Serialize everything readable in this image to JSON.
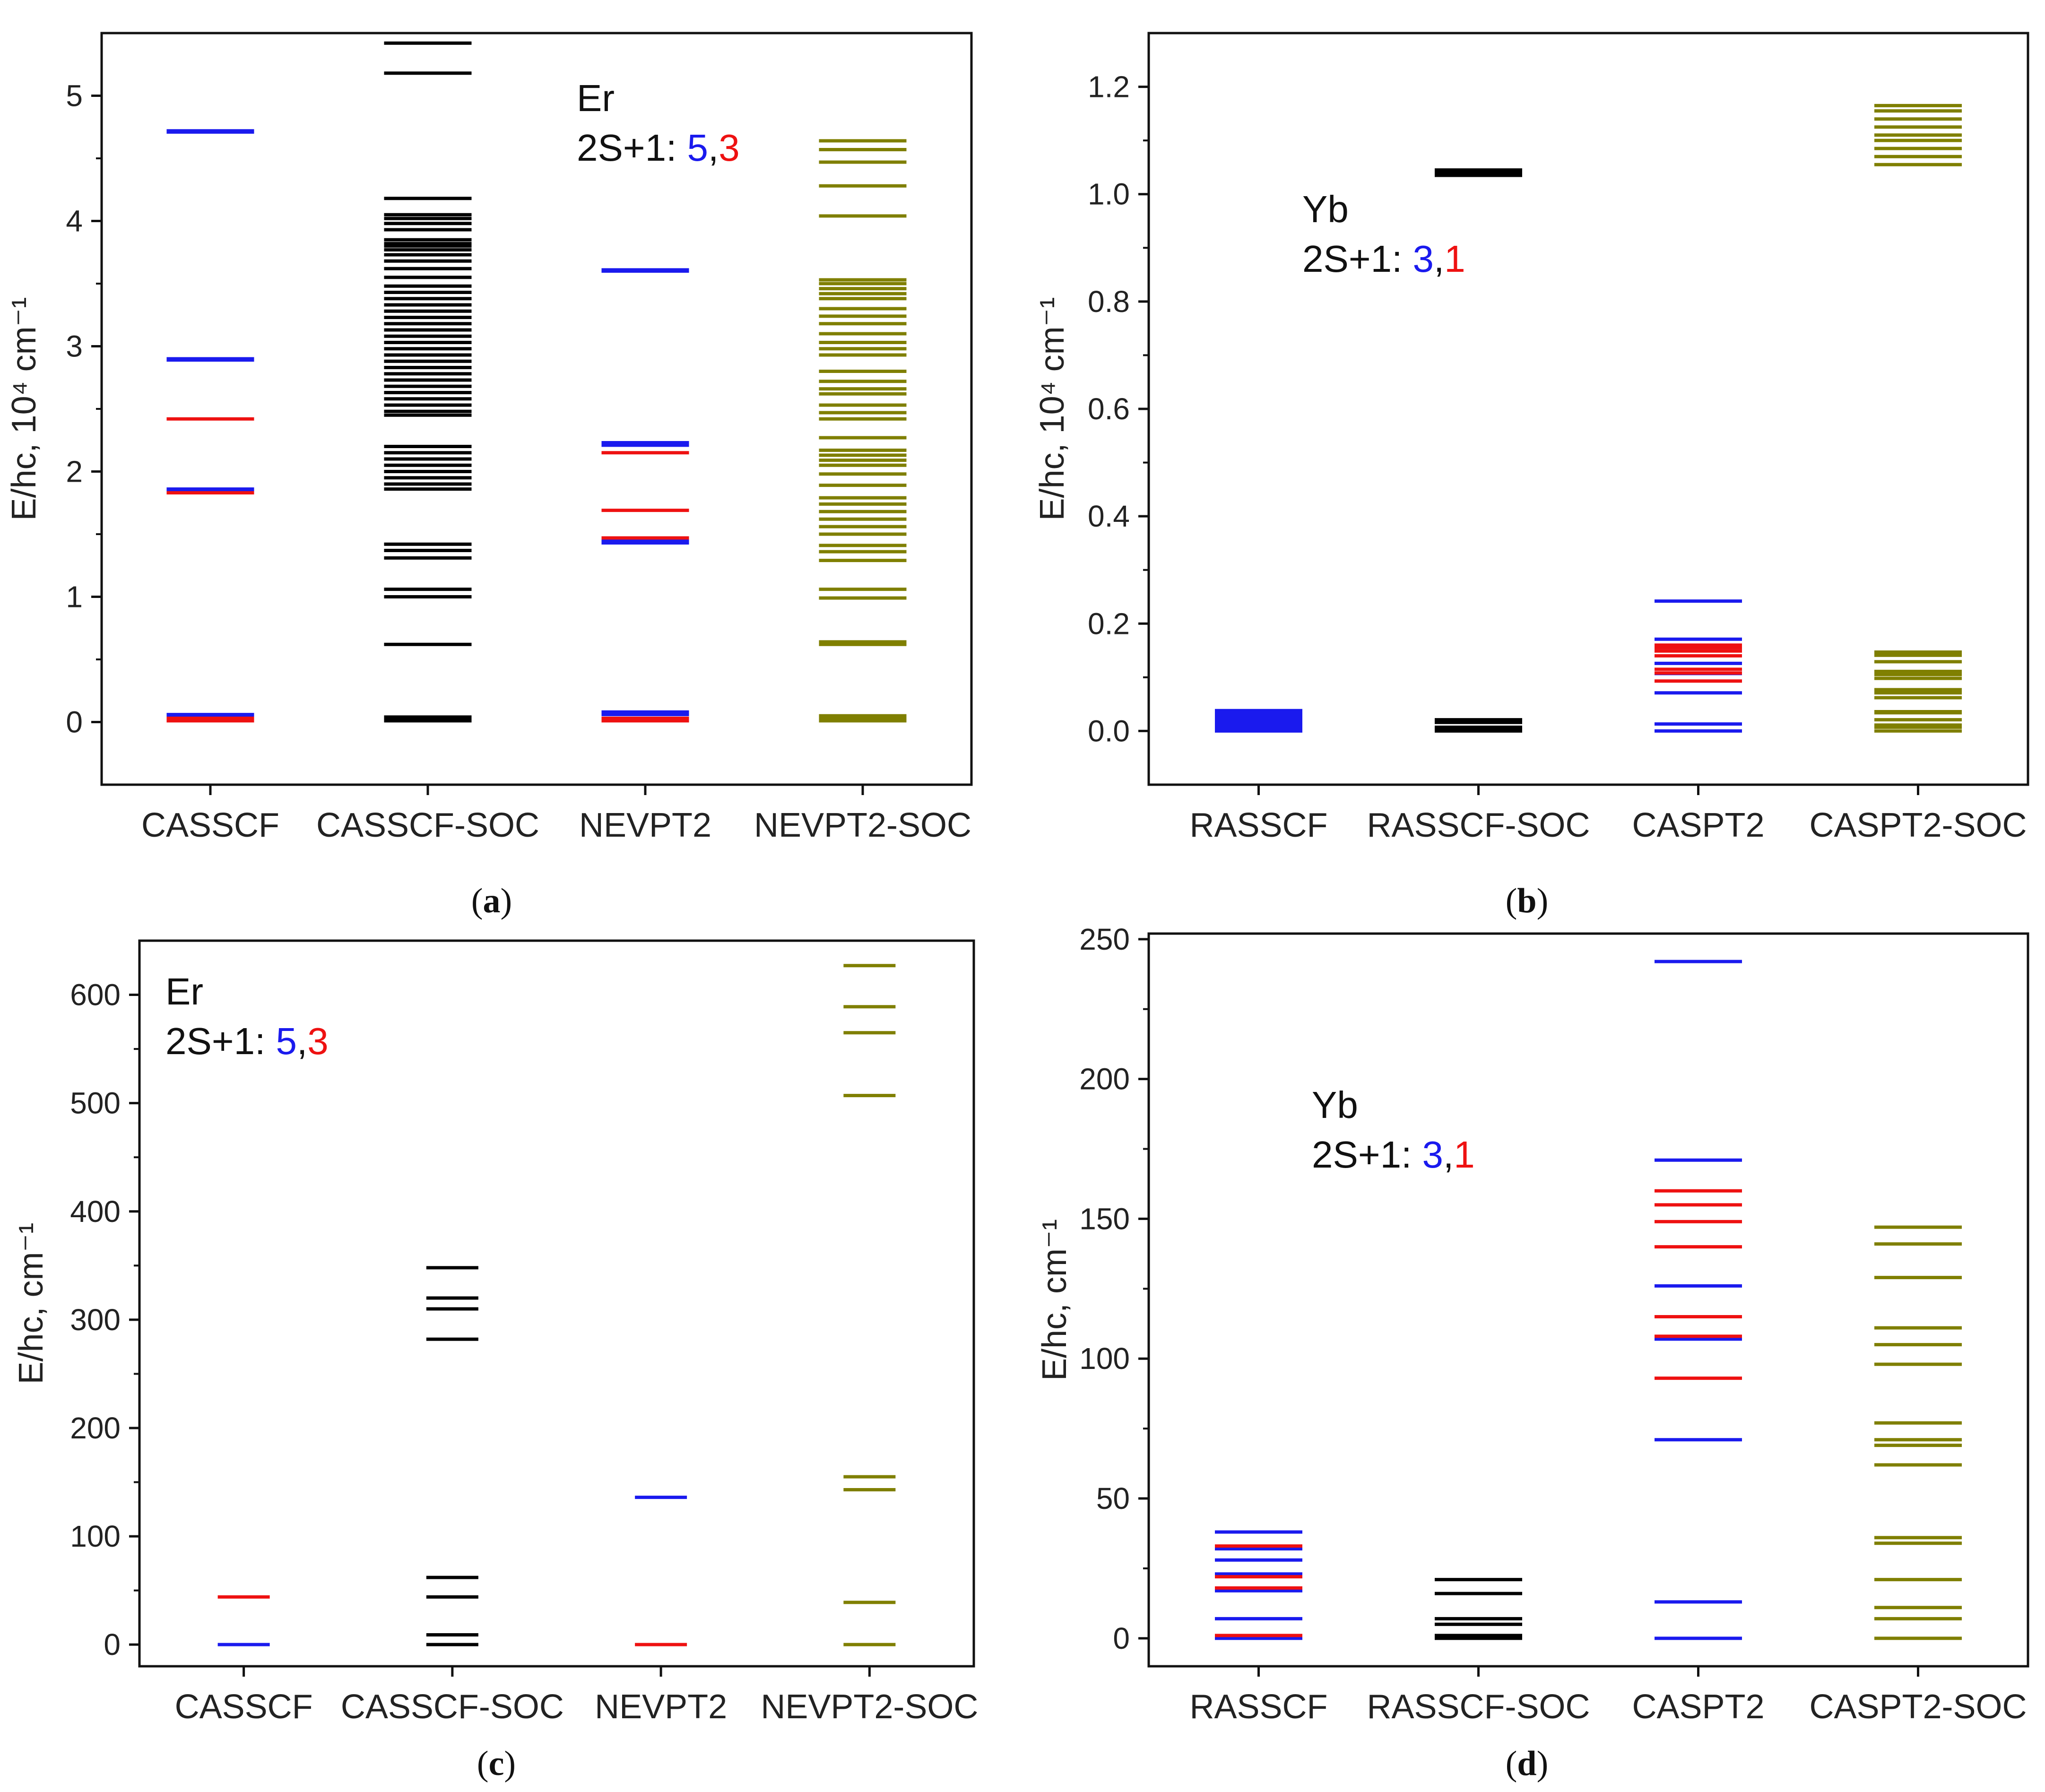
{
  "colors": {
    "quintet_triplet_blue": "#1a1aee",
    "triplet_singlet_red": "#ee1111",
    "soc_black": "#000000",
    "nevpt2_soc_olive": "#7f7f00"
  },
  "chart_data": [
    {
      "type": "energy-level",
      "panel": "(a)",
      "panel_paren_open": "(",
      "panel_letter": "a",
      "panel_paren_close": ")",
      "ylabel": "E/hc, 10⁴ cm⁻¹",
      "ylim": [
        -0.5,
        5.5
      ],
      "yticks": [
        0,
        1,
        2,
        3,
        4,
        5
      ],
      "ytick_labels": [
        "0",
        "1",
        "2",
        "3",
        "4",
        "5"
      ],
      "categories": [
        "CASSCF",
        "CASSCF-SOC",
        "NEVPT2",
        "NEVPT2-SOC"
      ],
      "annotation": {
        "element": "Er",
        "mult_prefix": "2S+1: ",
        "mult_a": "5",
        "sep": ",",
        "mult_b": "3"
      },
      "levels": [
        {
          "category": "CASSCF",
          "color": "blue",
          "values": [
            4.72,
            4.71,
            2.9,
            2.89,
            1.86,
            1.85,
            0.06,
            0.05
          ]
        },
        {
          "category": "CASSCF",
          "color": "red",
          "values": [
            2.42,
            1.83,
            0.03,
            0.01
          ]
        },
        {
          "category": "CASSCF-SOC",
          "color": "black",
          "values": [
            5.42,
            5.18,
            4.18,
            4.05,
            4.02,
            3.98,
            3.93,
            3.85,
            3.82,
            3.8,
            3.77,
            3.73,
            3.68,
            3.62,
            3.55,
            3.48,
            3.43,
            3.38,
            3.33,
            3.28,
            3.23,
            3.18,
            3.13,
            3.08,
            3.03,
            2.98,
            2.93,
            2.88,
            2.83,
            2.78,
            2.73,
            2.68,
            2.63,
            2.58,
            2.53,
            2.48,
            2.45,
            2.2,
            2.15,
            2.1,
            2.05,
            2.0,
            1.95,
            1.9,
            1.86,
            1.42,
            1.37,
            1.31,
            1.06,
            1.0,
            0.62,
            0.04,
            0.02,
            0.01
          ]
        },
        {
          "category": "NEVPT2",
          "color": "blue",
          "values": [
            3.61,
            3.6,
            2.23,
            2.21,
            1.45,
            1.43,
            0.08,
            0.06
          ]
        },
        {
          "category": "NEVPT2",
          "color": "red",
          "values": [
            2.15,
            1.69,
            1.47,
            0.03,
            0.01
          ]
        },
        {
          "category": "NEVPT2-SOC",
          "color": "olive",
          "values": [
            4.64,
            4.57,
            4.47,
            4.28,
            4.04,
            3.53,
            3.5,
            3.46,
            3.42,
            3.38,
            3.3,
            3.24,
            3.18,
            3.1,
            3.03,
            2.98,
            2.93,
            2.8,
            2.72,
            2.66,
            2.62,
            2.53,
            2.47,
            2.42,
            2.27,
            2.17,
            2.13,
            2.09,
            2.05,
            1.98,
            1.89,
            1.79,
            1.74,
            1.68,
            1.62,
            1.56,
            1.5,
            1.41,
            1.36,
            1.29,
            1.06,
            0.99,
            0.64,
            0.62,
            0.05,
            0.03,
            0.01
          ]
        }
      ]
    },
    {
      "type": "energy-level",
      "panel": "(b)",
      "panel_paren_open": "(",
      "panel_letter": "b",
      "panel_paren_close": ")",
      "ylabel": "E/hc, 10⁴ cm⁻¹",
      "ylim": [
        -0.1,
        1.3
      ],
      "yticks": [
        0.0,
        0.2,
        0.4,
        0.6,
        0.8,
        1.0,
        1.2
      ],
      "ytick_labels": [
        "0.0",
        "0.2",
        "0.4",
        "0.6",
        "0.8",
        "1.0",
        "1.2"
      ],
      "categories": [
        "RASSCF",
        "RASSCF-SOC",
        "CASPT2",
        "CASPT2-SOC"
      ],
      "annotation": {
        "element": "Yb",
        "mult_prefix": "2S+1: ",
        "mult_a": "3",
        "sep": ",",
        "mult_b": "1"
      },
      "levels": [
        {
          "category": "RASSCF",
          "color": "blue",
          "values": [
            0.038,
            0.033,
            0.028,
            0.023,
            0.018,
            0.013,
            0.008,
            0.003,
            0.0
          ]
        },
        {
          "category": "RASSCF-SOC",
          "color": "black",
          "values": [
            1.045,
            1.04,
            1.035,
            0.021,
            0.016,
            0.007,
            0.003,
            0.0
          ]
        },
        {
          "category": "CASPT2",
          "color": "blue",
          "values": [
            0.242,
            0.171,
            0.126,
            0.107,
            0.071,
            0.013,
            0.0
          ]
        },
        {
          "category": "CASPT2",
          "color": "red",
          "values": [
            0.16,
            0.155,
            0.149,
            0.14,
            0.115,
            0.108,
            0.093
          ]
        },
        {
          "category": "CASPT2-SOC",
          "color": "olive",
          "values": [
            1.165,
            1.155,
            1.14,
            1.125,
            1.11,
            1.1,
            1.085,
            1.07,
            1.055,
            0.147,
            0.141,
            0.129,
            0.111,
            0.105,
            0.098,
            0.077,
            0.071,
            0.062,
            0.036,
            0.034,
            0.021,
            0.011,
            0.007,
            0.0
          ]
        }
      ]
    },
    {
      "type": "energy-level",
      "panel": "(c)",
      "panel_paren_open": "(",
      "panel_letter": "c",
      "panel_paren_close": ")",
      "ylabel": "E/hc, cm⁻¹",
      "ylim": [
        -20,
        650
      ],
      "yticks": [
        0,
        100,
        200,
        300,
        400,
        500,
        600
      ],
      "ytick_labels": [
        "0",
        "100",
        "200",
        "300",
        "400",
        "500",
        "600"
      ],
      "categories": [
        "CASSCF",
        "CASSCF-SOC",
        "NEVPT2",
        "NEVPT2-SOC"
      ],
      "annotation": {
        "element": "Er",
        "mult_prefix": "2S+1: ",
        "mult_a": "5",
        "sep": ",",
        "mult_b": "3"
      },
      "levels": [
        {
          "category": "CASSCF",
          "color": "blue",
          "values": [
            0
          ]
        },
        {
          "category": "CASSCF",
          "color": "red",
          "values": [
            44
          ]
        },
        {
          "category": "CASSCF-SOC",
          "color": "black",
          "values": [
            348,
            320,
            310,
            282,
            62,
            44,
            9,
            0
          ]
        },
        {
          "category": "NEVPT2",
          "color": "blue",
          "values": [
            136
          ]
        },
        {
          "category": "NEVPT2",
          "color": "red",
          "values": [
            0
          ]
        },
        {
          "category": "NEVPT2-SOC",
          "color": "olive",
          "values": [
            627,
            589,
            565,
            507,
            155,
            143,
            39,
            0
          ]
        }
      ]
    },
    {
      "type": "energy-level",
      "panel": "(d)",
      "panel_paren_open": "(",
      "panel_letter": "d",
      "panel_paren_close": ")",
      "ylabel": "E/hc, cm⁻¹",
      "ylim": [
        -10,
        252
      ],
      "yticks": [
        0,
        50,
        100,
        150,
        200,
        250
      ],
      "ytick_labels": [
        "0",
        "50",
        "100",
        "150",
        "200",
        "250"
      ],
      "categories": [
        "RASSCF",
        "RASSCF-SOC",
        "CASPT2",
        "CASPT2-SOC"
      ],
      "annotation": {
        "element": "Yb",
        "mult_prefix": "2S+1: ",
        "mult_a": "3",
        "sep": ",",
        "mult_b": "1"
      },
      "levels": [
        {
          "category": "RASSCF",
          "color": "blue",
          "values": [
            38,
            32,
            28,
            23,
            17,
            7,
            0
          ]
        },
        {
          "category": "RASSCF",
          "color": "red",
          "values": [
            33,
            22,
            18,
            1
          ]
        },
        {
          "category": "RASSCF-SOC",
          "color": "black",
          "values": [
            21,
            16,
            7,
            5,
            1,
            0
          ]
        },
        {
          "category": "CASPT2",
          "color": "blue",
          "values": [
            242,
            171,
            126,
            107,
            71,
            13,
            0
          ]
        },
        {
          "category": "CASPT2",
          "color": "red",
          "values": [
            160,
            155,
            149,
            140,
            115,
            108,
            93
          ]
        },
        {
          "category": "CASPT2-SOC",
          "color": "olive",
          "values": [
            147,
            141,
            129,
            111,
            105,
            98,
            77,
            71,
            69,
            62,
            36,
            34,
            21,
            11,
            7,
            0
          ]
        }
      ]
    }
  ]
}
